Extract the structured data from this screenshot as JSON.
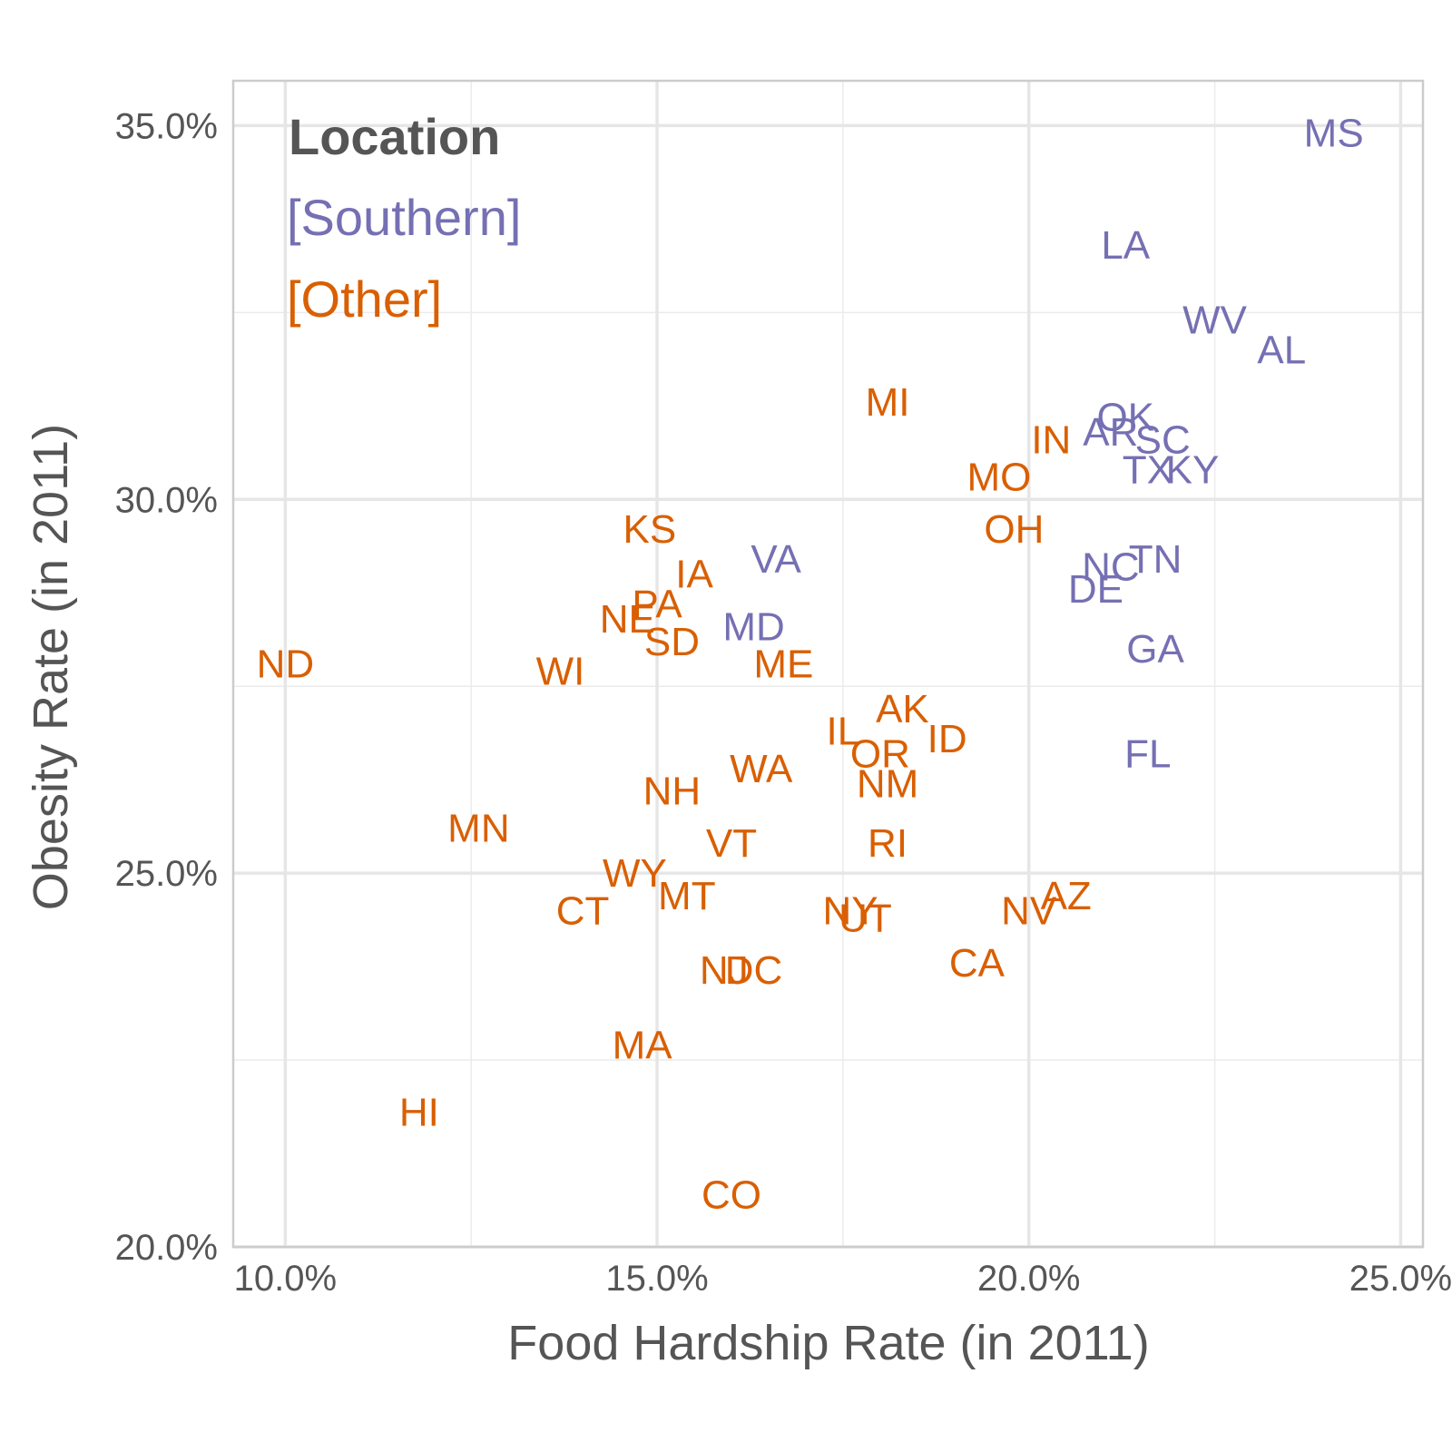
{
  "chart_data": {
    "type": "scatter",
    "xlabel": "Food Hardship Rate (in 2011)",
    "ylabel": "Obesity Rate (in 2011)",
    "xlim": [
      9.3,
      25.3
    ],
    "ylim": [
      20.0,
      35.6
    ],
    "x_ticks": [
      10,
      15,
      20,
      25
    ],
    "x_tick_labels": [
      "10.0%",
      "15.0%",
      "20.0%",
      "25.0%"
    ],
    "y_ticks": [
      20,
      25,
      30,
      35
    ],
    "y_tick_labels": [
      "20.0%",
      "25.0%",
      "30.0%",
      "35.0%"
    ],
    "grid": true,
    "legend": {
      "position": "top-left",
      "title": "Location",
      "items": [
        {
          "label": "[Southern]",
          "color": "#7570b3"
        },
        {
          "label": "[Other]",
          "color": "#d95f02"
        }
      ]
    },
    "series": [
      {
        "name": "[Southern]",
        "color": "#7570b3",
        "points": [
          {
            "label": "MS",
            "x": 24.1,
            "y": 34.9
          },
          {
            "label": "LA",
            "x": 21.3,
            "y": 33.4
          },
          {
            "label": "WV",
            "x": 22.5,
            "y": 32.4
          },
          {
            "label": "AL",
            "x": 23.4,
            "y": 32.0
          },
          {
            "label": "OK",
            "x": 21.3,
            "y": 31.1
          },
          {
            "label": "AR",
            "x": 21.1,
            "y": 30.9
          },
          {
            "label": "SC",
            "x": 21.8,
            "y": 30.8
          },
          {
            "label": "TX",
            "x": 21.6,
            "y": 30.4
          },
          {
            "label": "KY",
            "x": 22.2,
            "y": 30.4
          },
          {
            "label": "TN",
            "x": 21.7,
            "y": 29.2
          },
          {
            "label": "NC",
            "x": 21.1,
            "y": 29.1
          },
          {
            "label": "DE",
            "x": 20.9,
            "y": 28.8
          },
          {
            "label": "GA",
            "x": 21.7,
            "y": 28.0
          },
          {
            "label": "FL",
            "x": 21.6,
            "y": 26.6
          },
          {
            "label": "VA",
            "x": 16.6,
            "y": 29.2
          },
          {
            "label": "MD",
            "x": 16.3,
            "y": 28.3
          }
        ]
      },
      {
        "name": "[Other]",
        "color": "#d95f02",
        "points": [
          {
            "label": "MI",
            "x": 18.1,
            "y": 31.3
          },
          {
            "label": "IN",
            "x": 20.3,
            "y": 30.8
          },
          {
            "label": "MO",
            "x": 19.6,
            "y": 30.3
          },
          {
            "label": "OH",
            "x": 19.8,
            "y": 29.6
          },
          {
            "label": "KS",
            "x": 14.9,
            "y": 29.6
          },
          {
            "label": "IA",
            "x": 15.5,
            "y": 29.0
          },
          {
            "label": "PA",
            "x": 15.0,
            "y": 28.6
          },
          {
            "label": "NE",
            "x": 14.6,
            "y": 28.4
          },
          {
            "label": "SD",
            "x": 15.2,
            "y": 28.1
          },
          {
            "label": "ND",
            "x": 10.0,
            "y": 27.8
          },
          {
            "label": "WI",
            "x": 13.7,
            "y": 27.7
          },
          {
            "label": "ME",
            "x": 16.7,
            "y": 27.8
          },
          {
            "label": "AK",
            "x": 18.3,
            "y": 27.2
          },
          {
            "label": "IL",
            "x": 17.5,
            "y": 26.9
          },
          {
            "label": "ID",
            "x": 18.9,
            "y": 26.8
          },
          {
            "label": "OR",
            "x": 18.0,
            "y": 26.6
          },
          {
            "label": "WA",
            "x": 16.4,
            "y": 26.4
          },
          {
            "label": "NM",
            "x": 18.1,
            "y": 26.2
          },
          {
            "label": "NH",
            "x": 15.2,
            "y": 26.1
          },
          {
            "label": "MN",
            "x": 12.6,
            "y": 25.6
          },
          {
            "label": "VT",
            "x": 16.0,
            "y": 25.4
          },
          {
            "label": "RI",
            "x": 18.1,
            "y": 25.4
          },
          {
            "label": "WY",
            "x": 14.7,
            "y": 25.0
          },
          {
            "label": "AZ",
            "x": 20.5,
            "y": 24.7
          },
          {
            "label": "MT",
            "x": 15.4,
            "y": 24.7
          },
          {
            "label": "NV",
            "x": 20.0,
            "y": 24.5
          },
          {
            "label": "NY",
            "x": 17.6,
            "y": 24.5
          },
          {
            "label": "UT",
            "x": 17.8,
            "y": 24.4
          },
          {
            "label": "CT",
            "x": 14.0,
            "y": 24.5
          },
          {
            "label": "CA",
            "x": 19.3,
            "y": 23.8
          },
          {
            "label": "NJ",
            "x": 15.9,
            "y": 23.7
          },
          {
            "label": "DC",
            "x": 16.3,
            "y": 23.7
          },
          {
            "label": "MA",
            "x": 14.8,
            "y": 22.7
          },
          {
            "label": "HI",
            "x": 11.8,
            "y": 21.8
          },
          {
            "label": "CO",
            "x": 16.0,
            "y": 20.7
          }
        ]
      }
    ]
  }
}
